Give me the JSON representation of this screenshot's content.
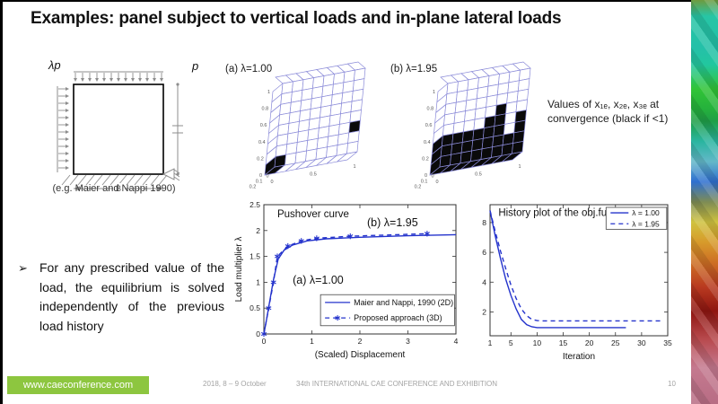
{
  "slide": {
    "title": "Examples: panel subject to vertical loads and in-plane lateral loads",
    "page_number": "10"
  },
  "schematic": {
    "label_lambda_p": "λp",
    "label_p": "p",
    "dim_b_label": "B",
    "caption": "(e.g. Maier and Nappi 1990)"
  },
  "bullet": {
    "marker": "➢",
    "text": "For any prescribed value of the load, the equilibrium is solved independently of the previous load history"
  },
  "values_note": {
    "text": "Values of x₁ₑ, x₂ₑ, x₃ₑ at convergence (black if <1)"
  },
  "footer": {
    "website": "www.caeconference.com",
    "date": "2018, 8 – 9 October",
    "conference": "34th INTERNATIONAL CAE CONFERENCE AND EXHIBITION"
  },
  "colors": {
    "line_blue": "#2433cc",
    "lattice_blue": "#8a8ad8",
    "black_cell": "#0a0a0a",
    "banner_green": "#8dc63f",
    "footer_gray": "#a3a3a3"
  },
  "chart_data": [
    {
      "id": "panel3d_a",
      "type": "heatmap",
      "title": "(a) λ=1.00",
      "grid_cols": 8,
      "grid_rows": 8,
      "black_cells": [
        [
          0,
          0
        ],
        [
          2,
          7
        ]
      ],
      "yticks": [
        "0",
        "0.2",
        "0.4",
        "0.6",
        "0.8",
        "1"
      ],
      "xticks": [
        "0",
        "0.5",
        "1"
      ],
      "depth_ticks": [
        "0.2",
        "0.1",
        "0"
      ]
    },
    {
      "id": "panel3d_b",
      "type": "heatmap",
      "title": "(b) λ=1.95",
      "grid_cols": 8,
      "grid_rows": 8,
      "black_cells": [
        [
          0,
          0
        ],
        [
          0,
          1
        ],
        [
          0,
          2
        ],
        [
          0,
          3
        ],
        [
          0,
          4
        ],
        [
          0,
          5
        ],
        [
          0,
          6
        ],
        [
          0,
          7
        ],
        [
          1,
          0
        ],
        [
          1,
          1
        ],
        [
          1,
          2
        ],
        [
          1,
          3
        ],
        [
          1,
          4
        ],
        [
          1,
          5
        ],
        [
          1,
          6
        ],
        [
          1,
          7
        ],
        [
          2,
          0
        ],
        [
          2,
          1
        ],
        [
          2,
          2
        ],
        [
          2,
          3
        ],
        [
          2,
          4
        ],
        [
          2,
          5
        ],
        [
          2,
          7
        ],
        [
          3,
          4
        ],
        [
          3,
          5
        ],
        [
          3,
          7
        ],
        [
          4,
          5
        ]
      ],
      "yticks": [
        "0",
        "0.2",
        "0.4",
        "0.6",
        "0.8",
        "1"
      ],
      "xticks": [
        "0",
        "0.5",
        "1"
      ],
      "depth_ticks": [
        "0.2",
        "0.1",
        "0"
      ]
    },
    {
      "id": "pushover",
      "type": "line",
      "xlabel": "(Scaled) Displacement",
      "ylabel": "Load multiplier λ",
      "xlim": [
        0,
        4
      ],
      "ylim": [
        0,
        2.5
      ],
      "xticks": [
        0,
        1,
        2,
        3,
        4
      ],
      "yticks": [
        0,
        0.5,
        1,
        1.5,
        2,
        2.5
      ],
      "grid": false,
      "series": [
        {
          "name": "Maier and Nappi, 1990 (2D)",
          "style": "solid",
          "x": [
            0,
            0.05,
            0.12,
            0.2,
            0.3,
            0.42,
            0.6,
            0.9,
            1.3,
            2,
            3,
            4
          ],
          "y": [
            0,
            0.25,
            0.62,
            1.05,
            1.45,
            1.62,
            1.72,
            1.8,
            1.84,
            1.87,
            1.9,
            1.92
          ]
        },
        {
          "name": "Proposed approach (3D)",
          "style": "dashed",
          "marker": "*",
          "x": [
            0,
            0.1,
            0.2,
            0.28,
            0.5,
            0.78,
            1.1,
            1.8,
            3.4
          ],
          "y": [
            0,
            0.5,
            1.0,
            1.5,
            1.7,
            1.8,
            1.85,
            1.89,
            1.94
          ]
        }
      ],
      "annotations": [
        {
          "text": "Pushover curve",
          "x": 0.28,
          "y": 2.26,
          "size": 11.5
        },
        {
          "text": "(a) λ=1.00",
          "x": 0.6,
          "y": 0.97,
          "size": 12.5
        },
        {
          "text": "(b) λ=1.95",
          "x": 2.15,
          "y": 2.08,
          "size": 12.5
        }
      ],
      "legend_position": "bottom-right",
      "legend_box": {
        "x1": 1.18,
        "y1": 0.16,
        "x2": 3.97,
        "y2": 0.76,
        "sample": 28,
        "font": 9
      }
    },
    {
      "id": "history",
      "type": "line",
      "xlabel": "Iteration",
      "ylabel": "",
      "xlim": [
        1,
        35
      ],
      "ylim": [
        0.4,
        9.2
      ],
      "xticks": [
        1,
        5,
        10,
        15,
        20,
        25,
        30,
        35
      ],
      "yticks": [
        2,
        4,
        6,
        8
      ],
      "grid": false,
      "series": [
        {
          "name": "λ = 1.00",
          "style": "solid",
          "x": [
            1,
            2,
            3,
            4,
            5,
            6,
            7,
            8,
            9,
            10,
            27
          ],
          "y": [
            8.8,
            7.1,
            5.6,
            4.2,
            3.1,
            2.2,
            1.5,
            1.15,
            1.0,
            0.95,
            0.95
          ]
        },
        {
          "name": "λ = 1.95",
          "style": "dashed",
          "x": [
            1,
            2,
            3,
            4,
            5,
            6,
            7,
            8,
            9,
            10,
            11,
            34
          ],
          "y": [
            8.8,
            7.4,
            6.1,
            4.9,
            3.8,
            2.9,
            2.2,
            1.75,
            1.5,
            1.42,
            1.4,
            1.4
          ]
        }
      ],
      "annotations": [
        {
          "text": "History plot of the obj.fun.",
          "x": 2.6,
          "y": 8.45,
          "size": 11.5
        }
      ],
      "legend_position": "top-right",
      "legend_box": {
        "x1": 23.2,
        "y1": 7.55,
        "x2": 34.8,
        "y2": 9.02,
        "sample": 20,
        "font": 8.5
      }
    }
  ]
}
